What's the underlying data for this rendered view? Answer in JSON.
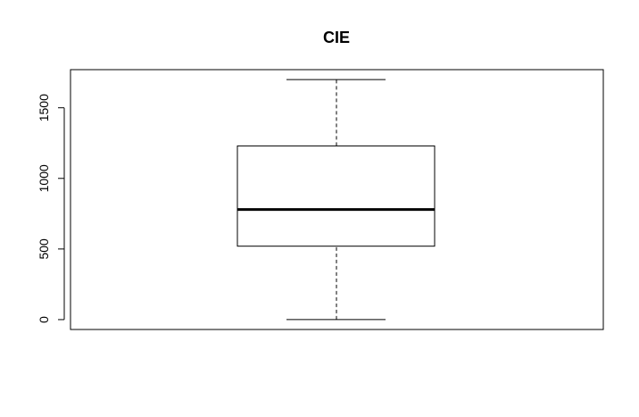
{
  "chart_data": {
    "type": "box",
    "title": "CIE",
    "xlabel": "",
    "ylabel": "",
    "ylim": [
      -70,
      1770
    ],
    "yticks": [
      0,
      500,
      1000,
      1500
    ],
    "ytick_labels": [
      "0",
      "500",
      "1000",
      "1500"
    ],
    "grid": false,
    "series": [
      {
        "min": 0,
        "q1": 520,
        "median": 780,
        "q3": 1230,
        "max": 1700
      }
    ],
    "colors": {
      "stroke": "#000000",
      "background": "#ffffff"
    }
  }
}
